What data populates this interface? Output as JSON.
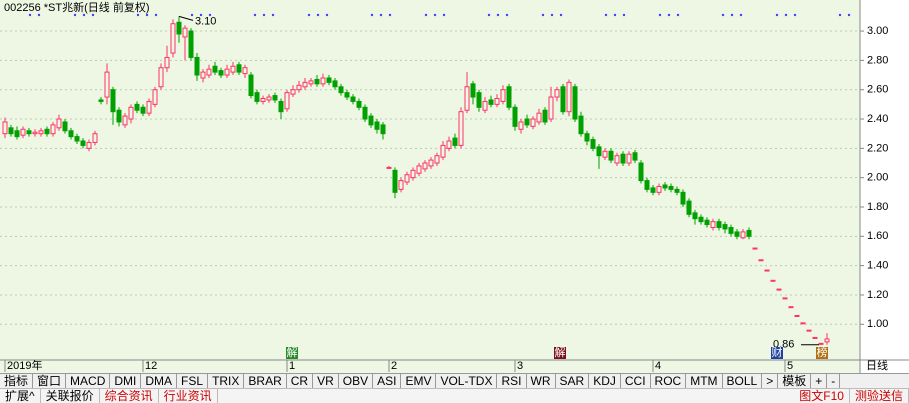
{
  "header": {
    "title": "002256 *ST兆新(日线 前复权)"
  },
  "chart_data": {
    "type": "candlestick",
    "up_color": "#ff3366",
    "down_color": "#00a000",
    "background": "#eef7e4",
    "grid": true,
    "ylim": [
      0.77,
      3.13
    ],
    "yticks": [
      {
        "value": 1,
        "label": "1.00"
      },
      {
        "value": 1.2,
        "label": "1.20"
      },
      {
        "value": 1.4,
        "label": "1.40"
      },
      {
        "value": 1.6,
        "label": "1.60"
      },
      {
        "value": 1.8,
        "label": "1.80"
      },
      {
        "value": 2,
        "label": "2.00"
      },
      {
        "value": 2.2,
        "label": "2.20"
      },
      {
        "value": 2.4,
        "label": "2.40"
      },
      {
        "value": 2.6,
        "label": "2.60"
      },
      {
        "value": 2.8,
        "label": "2.80"
      },
      {
        "value": 3,
        "label": "3.00"
      }
    ],
    "categories": [
      "2019年",
      null,
      null,
      null,
      null,
      null,
      null,
      null,
      null,
      null,
      null,
      null,
      null,
      null,
      null,
      null,
      null,
      null,
      null,
      null,
      null,
      null,
      null,
      "12",
      null,
      null,
      null,
      null,
      null,
      null,
      null,
      null,
      null,
      null,
      null,
      null,
      null,
      null,
      null,
      null,
      null,
      null,
      null,
      null,
      null,
      null,
      null,
      "1",
      null,
      null,
      null,
      null,
      null,
      null,
      null,
      null,
      null,
      null,
      null,
      null,
      null,
      null,
      null,
      null,
      "2",
      null,
      null,
      null,
      null,
      null,
      null,
      null,
      null,
      null,
      null,
      null,
      null,
      null,
      null,
      null,
      null,
      null,
      null,
      null,
      null,
      "3",
      null,
      null,
      null,
      null,
      null,
      null,
      null,
      null,
      null,
      null,
      null,
      null,
      null,
      null,
      null,
      null,
      null,
      null,
      null,
      null,
      null,
      null,
      "4",
      null,
      null,
      null,
      null,
      null,
      null,
      null,
      null,
      null,
      null,
      null,
      null,
      null,
      null,
      null,
      null,
      null,
      null,
      null,
      null,
      null,
      "5",
      null,
      null,
      null,
      null,
      null,
      null,
      null
    ],
    "open": [
      2.3,
      2.34,
      2.32,
      2.29,
      2.32,
      2.3,
      2.3,
      2.33,
      2.3,
      2.34,
      2.38,
      2.32,
      2.28,
      2.25,
      2.2,
      2.24,
      2.53,
      2.55,
      2.6,
      2.46,
      2.36,
      2.4,
      2.5,
      2.48,
      2.44,
      2.5,
      2.62,
      2.75,
      2.85,
      3.06,
      2.96,
      3.0,
      2.82,
      2.68,
      2.7,
      2.76,
      2.73,
      2.7,
      2.72,
      2.77,
      2.71,
      2.7,
      2.58,
      2.52,
      2.53,
      2.56,
      2.52,
      2.47,
      2.57,
      2.6,
      2.62,
      2.64,
      2.67,
      2.64,
      2.68,
      2.66,
      2.62,
      2.58,
      2.55,
      2.52,
      2.48,
      2.42,
      2.38,
      2.36,
      2.07,
      2.05,
      1.92,
      1.97,
      2.0,
      2.03,
      2.06,
      2.08,
      2.1,
      2.14,
      2.2,
      2.27,
      2.22,
      2.46,
      2.64,
      2.58,
      2.46,
      2.53,
      2.5,
      2.52,
      2.62,
      2.48,
      2.33,
      2.4,
      2.35,
      2.38,
      2.46,
      2.4,
      2.55,
      2.62,
      2.45,
      2.62,
      2.42,
      2.3,
      2.26,
      2.21,
      2.14,
      2.18,
      2.1,
      2.16,
      2.1,
      2.17,
      2.1,
      1.98,
      1.93,
      1.9,
      1.95,
      1.94,
      1.92,
      1.9,
      1.84,
      1.76,
      1.73,
      1.71,
      1.66,
      1.7,
      1.68,
      1.66,
      1.63,
      1.59,
      1.64,
      1.52,
      1.44,
      1.37,
      1.3,
      1.24,
      1.18,
      1.12,
      1.06,
      1.01,
      0.96,
      0.91,
      0.87,
      0.88
    ],
    "high": [
      2.41,
      2.36,
      2.35,
      2.35,
      2.34,
      2.33,
      2.34,
      2.35,
      2.38,
      2.43,
      2.4,
      2.34,
      2.3,
      2.27,
      2.26,
      2.32,
      2.55,
      2.78,
      2.62,
      2.48,
      2.44,
      2.5,
      2.52,
      2.5,
      2.54,
      2.62,
      2.78,
      2.9,
      3.08,
      3.1,
      3.04,
      3.02,
      2.85,
      2.74,
      2.77,
      2.79,
      2.75,
      2.77,
      2.79,
      2.79,
      2.77,
      2.72,
      2.6,
      2.56,
      2.57,
      2.58,
      2.54,
      2.6,
      2.63,
      2.66,
      2.68,
      2.68,
      2.7,
      2.71,
      2.7,
      2.68,
      2.64,
      2.6,
      2.57,
      2.54,
      2.5,
      2.44,
      2.4,
      2.38,
      2.08,
      2.07,
      2.0,
      2.04,
      2.07,
      2.1,
      2.12,
      2.14,
      2.17,
      2.25,
      2.28,
      2.3,
      2.48,
      2.72,
      2.66,
      2.6,
      2.55,
      2.56,
      2.57,
      2.63,
      2.64,
      2.5,
      2.4,
      2.43,
      2.42,
      2.47,
      2.48,
      2.62,
      2.62,
      2.64,
      2.67,
      2.64,
      2.45,
      2.32,
      2.28,
      2.23,
      2.2,
      2.2,
      2.17,
      2.18,
      2.18,
      2.19,
      2.12,
      2.0,
      1.95,
      1.96,
      1.97,
      1.96,
      1.94,
      1.92,
      1.86,
      1.78,
      1.75,
      1.73,
      1.72,
      1.72,
      1.7,
      1.68,
      1.65,
      1.65,
      1.66,
      1.52,
      1.44,
      1.37,
      1.3,
      1.24,
      1.18,
      1.12,
      1.06,
      1.01,
      0.96,
      0.91,
      0.87,
      0.94
    ],
    "low": [
      2.27,
      2.28,
      2.26,
      2.27,
      2.28,
      2.28,
      2.28,
      2.28,
      2.28,
      2.32,
      2.3,
      2.26,
      2.23,
      2.2,
      2.18,
      2.22,
      2.5,
      2.5,
      2.36,
      2.35,
      2.34,
      2.37,
      2.44,
      2.42,
      2.42,
      2.48,
      2.6,
      2.72,
      2.82,
      2.92,
      2.8,
      2.8,
      2.66,
      2.65,
      2.68,
      2.7,
      2.68,
      2.68,
      2.7,
      2.7,
      2.68,
      2.54,
      2.5,
      2.5,
      2.51,
      2.51,
      2.4,
      2.45,
      2.55,
      2.58,
      2.6,
      2.62,
      2.62,
      2.62,
      2.63,
      2.6,
      2.56,
      2.53,
      2.5,
      2.46,
      2.38,
      2.34,
      2.3,
      2.26,
      2.06,
      1.86,
      1.9,
      1.95,
      1.98,
      2.01,
      2.04,
      2.06,
      2.08,
      2.12,
      2.18,
      2.2,
      2.2,
      2.44,
      2.5,
      2.45,
      2.44,
      2.48,
      2.48,
      2.5,
      2.46,
      2.32,
      2.3,
      2.34,
      2.33,
      2.36,
      2.36,
      2.38,
      2.52,
      2.43,
      2.42,
      2.38,
      2.28,
      2.22,
      2.18,
      2.06,
      2.12,
      2.1,
      2.08,
      2.08,
      2.08,
      2.1,
      1.96,
      1.9,
      1.88,
      1.88,
      1.91,
      1.9,
      1.88,
      1.8,
      1.73,
      1.68,
      1.68,
      1.66,
      1.64,
      1.64,
      1.62,
      1.6,
      1.58,
      1.58,
      1.58,
      1.52,
      1.44,
      1.37,
      1.3,
      1.24,
      1.18,
      1.12,
      1.06,
      1.01,
      0.96,
      0.91,
      0.86,
      0.86
    ],
    "close": [
      2.38,
      2.3,
      2.28,
      2.33,
      2.3,
      2.31,
      2.32,
      2.3,
      2.36,
      2.4,
      2.32,
      2.28,
      2.25,
      2.22,
      2.24,
      2.3,
      2.52,
      2.72,
      2.45,
      2.38,
      2.42,
      2.48,
      2.46,
      2.44,
      2.52,
      2.6,
      2.75,
      2.82,
      3.05,
      2.98,
      3.02,
      2.82,
      2.7,
      2.72,
      2.74,
      2.72,
      2.7,
      2.74,
      2.76,
      2.72,
      2.75,
      2.56,
      2.52,
      2.54,
      2.55,
      2.53,
      2.45,
      2.58,
      2.6,
      2.63,
      2.65,
      2.66,
      2.64,
      2.68,
      2.65,
      2.62,
      2.58,
      2.55,
      2.52,
      2.48,
      2.4,
      2.36,
      2.33,
      2.3,
      2.07,
      1.9,
      1.98,
      2.02,
      2.05,
      2.08,
      2.1,
      2.12,
      2.15,
      2.22,
      2.25,
      2.22,
      2.45,
      2.62,
      2.55,
      2.48,
      2.52,
      2.5,
      2.54,
      2.6,
      2.48,
      2.35,
      2.38,
      2.36,
      2.4,
      2.44,
      2.38,
      2.55,
      2.6,
      2.45,
      2.65,
      2.4,
      2.3,
      2.25,
      2.2,
      2.15,
      2.18,
      2.12,
      2.15,
      2.1,
      2.16,
      2.12,
      1.98,
      1.92,
      1.9,
      1.94,
      1.93,
      1.92,
      1.9,
      1.82,
      1.75,
      1.72,
      1.7,
      1.68,
      1.7,
      1.66,
      1.65,
      1.62,
      1.6,
      1.63,
      1.6,
      1.52,
      1.44,
      1.37,
      1.3,
      1.24,
      1.18,
      1.12,
      1.06,
      1.01,
      0.96,
      0.91,
      0.87,
      0.9
    ],
    "annotations": [
      {
        "text": "3.10",
        "value": 3.1
      },
      {
        "text": "0.86",
        "value": 0.86
      }
    ],
    "period": "日线"
  },
  "markers": [
    "解",
    "解",
    "财",
    "榜"
  ],
  "toolbar": [
    "指标",
    "窗口",
    "MACD",
    "DMI",
    "DMA",
    "FSL",
    "TRIX",
    "BRAR",
    "CR",
    "VR",
    "OBV",
    "ASI",
    "EMV",
    "VOL-TDX",
    "RSI",
    "WR",
    "SAR",
    "KDJ",
    "CCI",
    "ROC",
    "MTM",
    "BOLL",
    ">",
    "模板",
    "+",
    "-"
  ],
  "bottom_tabs": [
    "扩展^",
    "关联报价",
    "综合资讯",
    "行业资讯"
  ],
  "bottom_right": [
    "图文F10",
    "测验送信"
  ]
}
